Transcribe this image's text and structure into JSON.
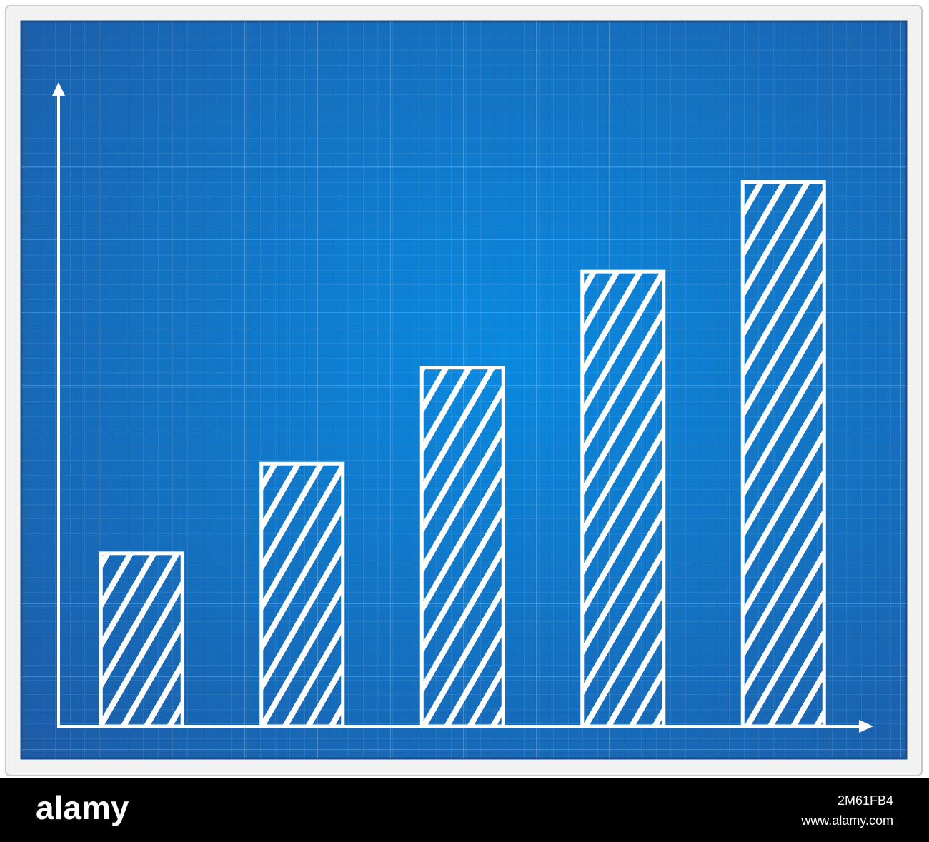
{
  "chart_data": {
    "type": "bar",
    "categories": [
      null,
      null,
      null,
      null,
      null
    ],
    "values": [
      27,
      41,
      56,
      71,
      85
    ],
    "color": "#ffffff",
    "ylim": [
      0,
      100
    ]
  },
  "footer": {
    "brand": "alamy",
    "image_id": "2M61FB4",
    "url": "www.alamy.com"
  }
}
